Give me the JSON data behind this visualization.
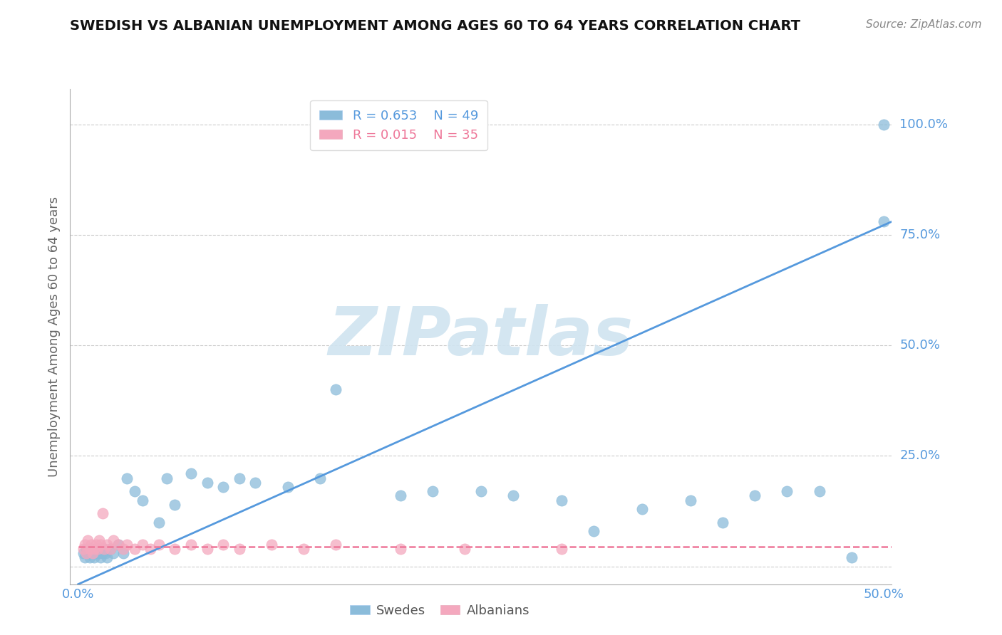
{
  "title": "SWEDISH VS ALBANIAN UNEMPLOYMENT AMONG AGES 60 TO 64 YEARS CORRELATION CHART",
  "source": "Source: ZipAtlas.com",
  "ylabel": "Unemployment Among Ages 60 to 64 years",
  "xlim": [
    -0.005,
    0.505
  ],
  "ylim": [
    -0.04,
    1.08
  ],
  "xtick_positions": [
    0.0,
    0.1,
    0.2,
    0.3,
    0.4,
    0.5
  ],
  "xtick_labels": [
    "0.0%",
    "",
    "",
    "",
    "",
    "50.0%"
  ],
  "ytick_positions": [
    0.0,
    0.25,
    0.5,
    0.75,
    1.0
  ],
  "ytick_labels": [
    "",
    "25.0%",
    "50.0%",
    "75.0%",
    "100.0%"
  ],
  "grid_color": "#cccccc",
  "swedes_color": "#8bbcda",
  "albanians_color": "#f4a8be",
  "regression_blue": "#5599dd",
  "regression_pink": "#ee7799",
  "watermark_text": "ZIPatlas",
  "watermark_color": "#d0e4f0",
  "swedes_x": [
    0.003,
    0.004,
    0.005,
    0.006,
    0.007,
    0.008,
    0.009,
    0.01,
    0.011,
    0.012,
    0.013,
    0.014,
    0.015,
    0.016,
    0.017,
    0.018,
    0.02,
    0.022,
    0.025,
    0.028,
    0.03,
    0.035,
    0.04,
    0.05,
    0.055,
    0.06,
    0.07,
    0.08,
    0.09,
    0.1,
    0.11,
    0.13,
    0.15,
    0.16,
    0.2,
    0.22,
    0.25,
    0.27,
    0.3,
    0.32,
    0.35,
    0.38,
    0.4,
    0.42,
    0.44,
    0.46,
    0.48,
    0.5,
    0.5
  ],
  "swedes_y": [
    0.03,
    0.02,
    0.04,
    0.03,
    0.02,
    0.04,
    0.03,
    0.02,
    0.03,
    0.04,
    0.03,
    0.02,
    0.03,
    0.04,
    0.03,
    0.02,
    0.04,
    0.03,
    0.05,
    0.03,
    0.2,
    0.17,
    0.15,
    0.1,
    0.2,
    0.14,
    0.21,
    0.19,
    0.18,
    0.2,
    0.19,
    0.18,
    0.2,
    0.4,
    0.16,
    0.17,
    0.17,
    0.16,
    0.15,
    0.08,
    0.13,
    0.15,
    0.1,
    0.16,
    0.17,
    0.17,
    0.02,
    0.78,
    1.0
  ],
  "albanians_x": [
    0.003,
    0.004,
    0.005,
    0.006,
    0.007,
    0.008,
    0.009,
    0.01,
    0.011,
    0.012,
    0.013,
    0.014,
    0.015,
    0.016,
    0.018,
    0.02,
    0.022,
    0.025,
    0.028,
    0.03,
    0.035,
    0.04,
    0.045,
    0.05,
    0.06,
    0.07,
    0.08,
    0.09,
    0.1,
    0.12,
    0.14,
    0.16,
    0.2,
    0.24,
    0.3
  ],
  "albanians_y": [
    0.04,
    0.05,
    0.03,
    0.06,
    0.04,
    0.05,
    0.03,
    0.04,
    0.05,
    0.04,
    0.06,
    0.05,
    0.12,
    0.04,
    0.05,
    0.04,
    0.06,
    0.05,
    0.04,
    0.05,
    0.04,
    0.05,
    0.04,
    0.05,
    0.04,
    0.05,
    0.04,
    0.05,
    0.04,
    0.05,
    0.04,
    0.05,
    0.04,
    0.04,
    0.04
  ],
  "regression_blue_x0": 0.0,
  "regression_blue_x1": 0.505,
  "regression_blue_y0": -0.04,
  "regression_blue_y1": 0.78,
  "regression_pink_y": 0.045,
  "marker_size": 120,
  "marker_size_small": 80
}
